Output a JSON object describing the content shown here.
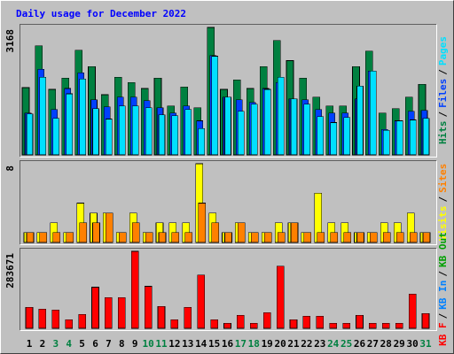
{
  "title": "Daily usage for December 2022",
  "separator": "/",
  "weekend_color": "#008040",
  "weekend_days": [
    3,
    4,
    10,
    11,
    17,
    18,
    24,
    25,
    31
  ],
  "categories": [
    "1",
    "2",
    "3",
    "4",
    "5",
    "6",
    "7",
    "8",
    "9",
    "10",
    "11",
    "12",
    "13",
    "14",
    "15",
    "16",
    "17",
    "18",
    "19",
    "20",
    "21",
    "22",
    "23",
    "24",
    "25",
    "26",
    "27",
    "28",
    "29",
    "30",
    "31"
  ],
  "chart_data": [
    {
      "type": "bar",
      "ylim": [
        0,
        3168
      ],
      "yticks": [
        3168
      ],
      "series": [
        {
          "name": "Hits",
          "color": "#008040",
          "values": [
            1671,
            2712,
            1627,
            1910,
            2604,
            2191,
            1497,
            1931,
            1801,
            1649,
            1910,
            1215,
            1692,
            1172,
            3168,
            1627,
            1866,
            1649,
            2191,
            2842,
            2343,
            1910,
            1432,
            1215,
            1215,
            2191,
            2582,
            1042,
            1150,
            1432,
            1758
          ]
        },
        {
          "name": "Files",
          "color": "#0040ff",
          "values": [
            1042,
            2127,
            1128,
            1649,
            2040,
            1367,
            1193,
            1432,
            1432,
            1345,
            1172,
            1042,
            1215,
            846,
            2473,
            1432,
            1367,
            1302,
            1649,
            1801,
            1389,
            1367,
            1128,
            1042,
            1042,
            1389,
            2083,
            629,
            846,
            1085,
            1107
          ]
        },
        {
          "name": "Pages",
          "color": "#00e0ff",
          "values": [
            1020,
            1931,
            911,
            1519,
            1888,
            1150,
            890,
            1215,
            1215,
            1172,
            998,
            977,
            1128,
            651,
            2452,
            1432,
            1085,
            1259,
            1628,
            1931,
            1389,
            1259,
            955,
            803,
            933,
            1714,
            2083,
            608,
            846,
            868,
            911
          ]
        }
      ]
    },
    {
      "type": "bar",
      "ylim": [
        0,
        8
      ],
      "yticks": [
        8
      ],
      "series": [
        {
          "name": "Visits",
          "color": "#ffff00",
          "values": [
            1,
            1,
            2,
            1,
            4,
            3,
            3,
            1,
            3,
            1,
            2,
            2,
            2,
            8,
            3,
            1,
            2,
            1,
            1,
            2,
            2,
            1,
            5,
            2,
            2,
            1,
            1,
            2,
            2,
            3,
            1
          ]
        },
        {
          "name": "Sites",
          "color": "#ff8000",
          "values": [
            1,
            1,
            1,
            1,
            2,
            2,
            3,
            1,
            2,
            1,
            1,
            1,
            1,
            4,
            2,
            1,
            2,
            1,
            1,
            1,
            2,
            1,
            1,
            1,
            1,
            1,
            1,
            1,
            1,
            1,
            1
          ]
        }
      ]
    },
    {
      "type": "bar",
      "ylim": [
        0,
        283671
      ],
      "yticks": [
        283671
      ],
      "series": [
        {
          "name": "KB F",
          "color": "#ff0000",
          "values": [
            77365,
            70918,
            67693,
            32235,
            51576,
            151506,
            112822,
            112822,
            283671,
            154730,
            80589,
            32235,
            77365,
            196636,
            32235,
            19341,
            48353,
            19341,
            58024,
            228872,
            32235,
            45129,
            45129,
            19341,
            19341,
            48353,
            19341,
            19341,
            19341,
            125717,
            54800
          ]
        },
        {
          "name": "KB In",
          "color": "#0080ff"
        },
        {
          "name": "KB Out",
          "color": "#00a000"
        }
      ]
    }
  ]
}
